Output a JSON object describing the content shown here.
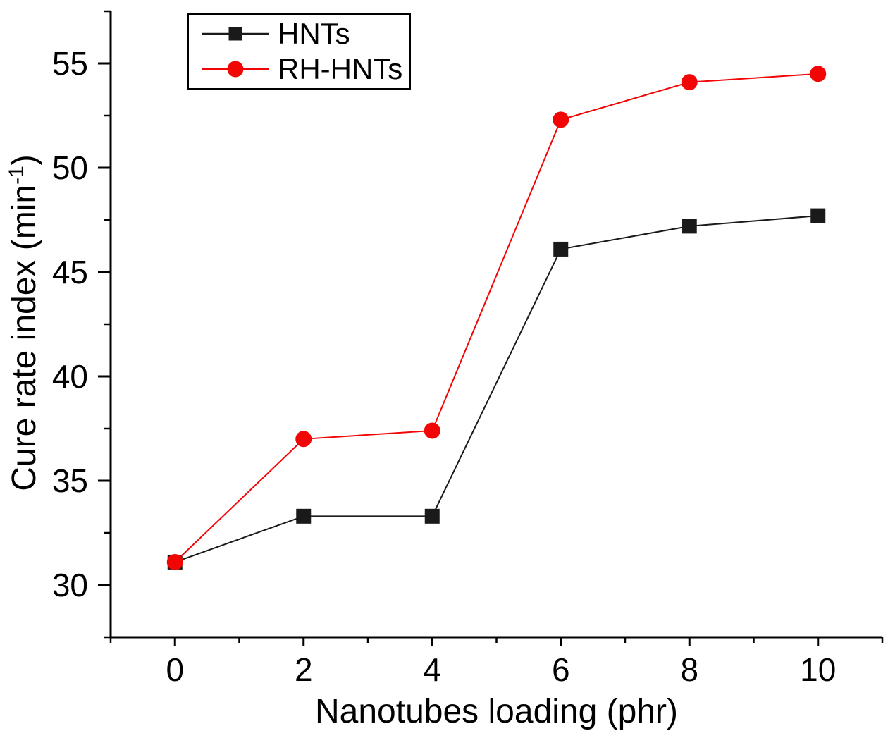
{
  "chart_data": {
    "type": "line",
    "title": "",
    "xlabel": "Nanotubes loading (phr)",
    "ylabel": "Cure rate index (min⁻¹)",
    "x": [
      0,
      2,
      4,
      6,
      8,
      10
    ],
    "series": [
      {
        "name": "HNTs",
        "color": "#1a1a1a",
        "marker": "square",
        "values": [
          31.1,
          33.3,
          33.3,
          46.1,
          47.2,
          47.7
        ]
      },
      {
        "name": "RH-HNTs",
        "color": "#f20505",
        "marker": "circle",
        "values": [
          31.1,
          37.0,
          37.4,
          52.3,
          54.1,
          54.5
        ]
      }
    ],
    "xlim": [
      -1,
      11
    ],
    "ylim": [
      27.5,
      57.5
    ],
    "x_major_ticks": [
      0,
      2,
      4,
      6,
      8,
      10
    ],
    "x_minor_ticks": [
      -1,
      1,
      3,
      5,
      7,
      9,
      11
    ],
    "y_major_ticks": [
      30,
      35,
      40,
      45,
      50,
      55
    ],
    "y_minor_ticks": [
      27.5,
      32.5,
      37.5,
      42.5,
      47.5,
      52.5,
      57.5
    ],
    "grid": false,
    "legend_position": "top-left-inside"
  },
  "y_axis_title": {
    "base": "Cure rate index (min",
    "sup": "-1",
    "close": ")"
  },
  "style": {
    "background": "#ffffff",
    "axis_color": "#000000",
    "tick_label_color": "#000000"
  }
}
